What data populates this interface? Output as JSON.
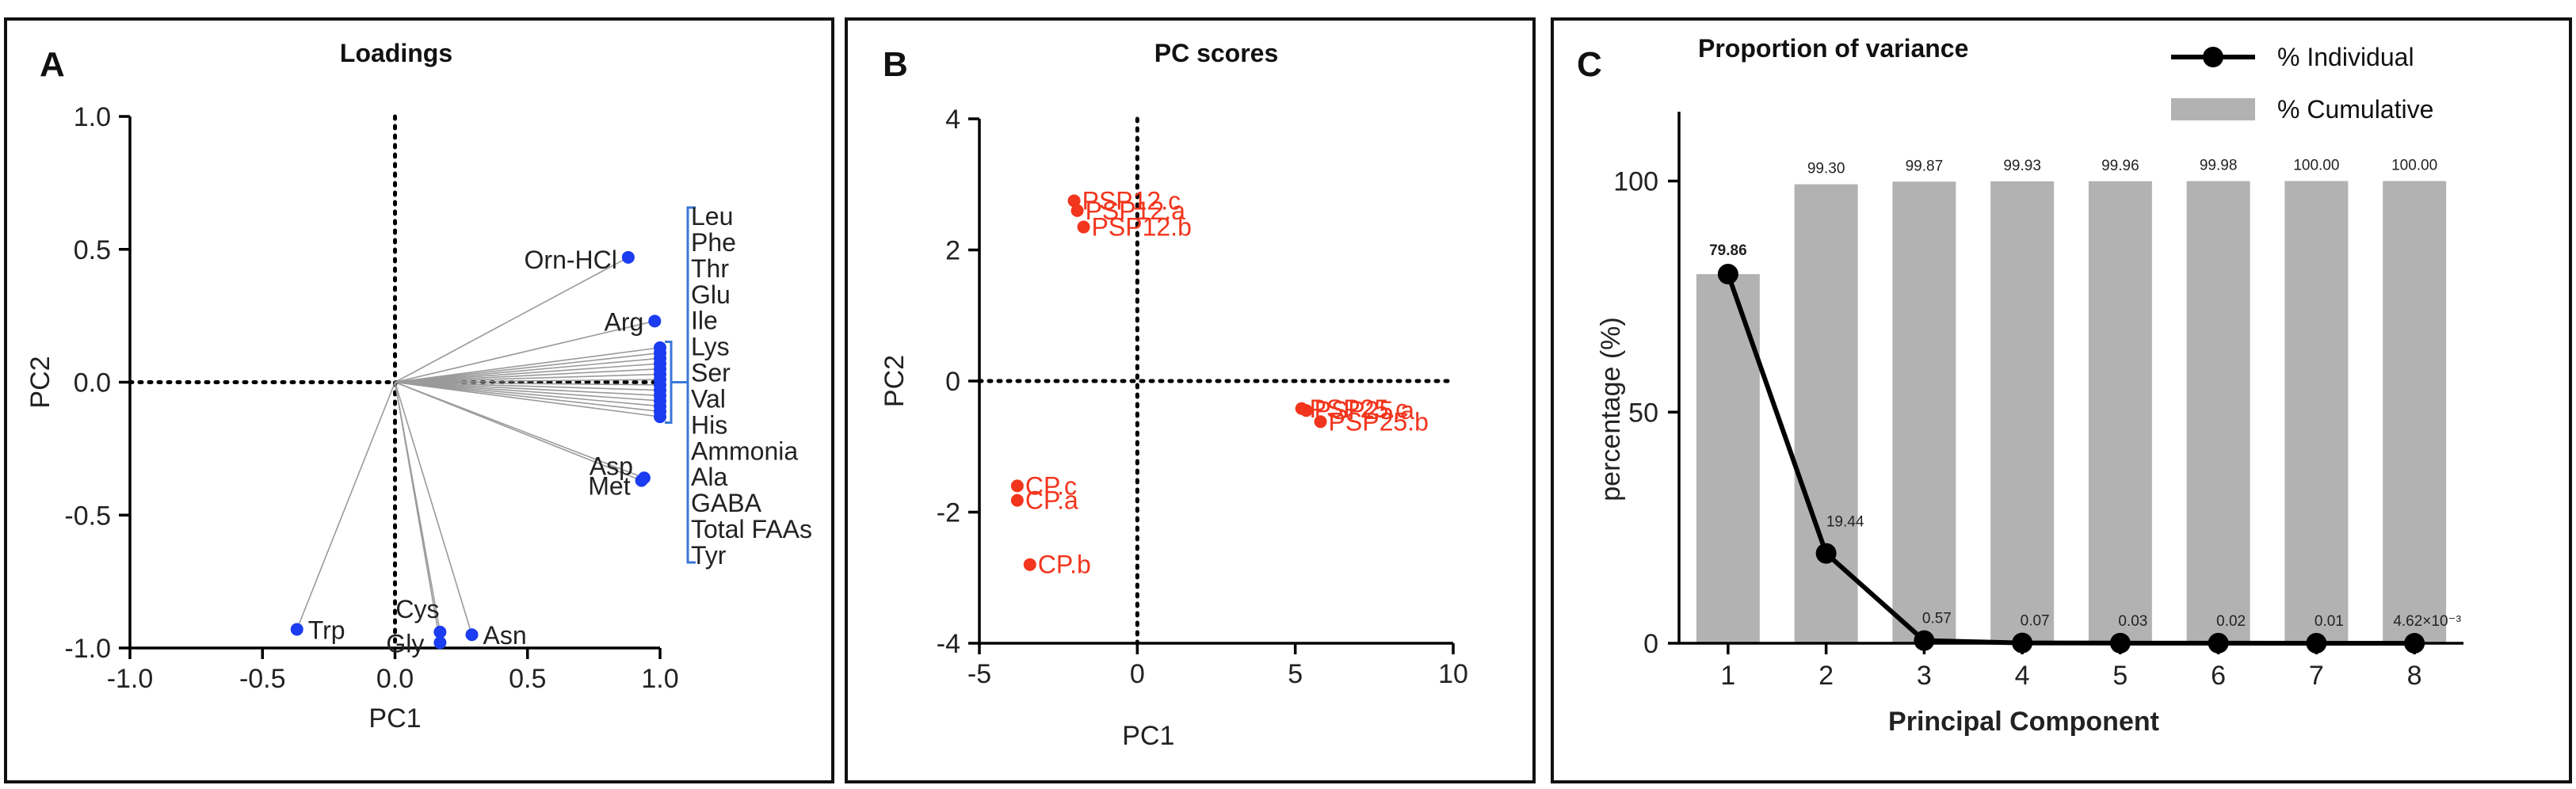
{
  "panels": {
    "a": {
      "letter": "A",
      "title": "Loadings"
    },
    "b": {
      "letter": "B",
      "title": "PC scores"
    },
    "c": {
      "letter": "C",
      "title": "Proportion of variance"
    }
  },
  "chart_data": [
    {
      "id": "loadings",
      "type": "scatter",
      "title": "Loadings",
      "xlabel": "PC1",
      "ylabel": "PC2",
      "xlim": [
        -1.0,
        1.0
      ],
      "ylim": [
        -1.0,
        1.0
      ],
      "xticks": [
        "-1.0",
        "-0.5",
        "0.0",
        "0.5",
        "1.0"
      ],
      "yticks": [
        "-1.0",
        "-0.5",
        "0.0",
        "0.5",
        "1.0"
      ],
      "points": [
        {
          "label": "Orn-HCl",
          "x": 0.88,
          "y": 0.47
        },
        {
          "label": "Arg",
          "x": 0.98,
          "y": 0.23
        },
        {
          "label": "Leu",
          "x": 1.0,
          "y": 0.13
        },
        {
          "label": "Phe",
          "x": 1.0,
          "y": 0.11
        },
        {
          "label": "Thr",
          "x": 1.0,
          "y": 0.09
        },
        {
          "label": "Glu",
          "x": 1.0,
          "y": 0.07
        },
        {
          "label": "Ile",
          "x": 1.0,
          "y": 0.05
        },
        {
          "label": "Lys",
          "x": 1.0,
          "y": 0.03
        },
        {
          "label": "Ser",
          "x": 1.0,
          "y": 0.01
        },
        {
          "label": "Val",
          "x": 1.0,
          "y": -0.01
        },
        {
          "label": "His",
          "x": 1.0,
          "y": -0.03
        },
        {
          "label": "Ammonia",
          "x": 1.0,
          "y": -0.05
        },
        {
          "label": "Ala",
          "x": 1.0,
          "y": -0.07
        },
        {
          "label": "GABA",
          "x": 1.0,
          "y": -0.09
        },
        {
          "label": "Total FAAs",
          "x": 1.0,
          "y": -0.11
        },
        {
          "label": "Tyr",
          "x": 1.0,
          "y": -0.13
        },
        {
          "label": "Asp",
          "x": 0.94,
          "y": -0.36
        },
        {
          "label": "Met",
          "x": 0.93,
          "y": -0.37
        },
        {
          "label": "Trp",
          "x": -0.37,
          "y": -0.93
        },
        {
          "label": "Cys",
          "x": 0.17,
          "y": -0.94
        },
        {
          "label": "Gly",
          "x": 0.17,
          "y": -0.98
        },
        {
          "label": "Asn",
          "x": 0.29,
          "y": -0.95
        }
      ],
      "bracket_labels": [
        "Leu",
        "Phe",
        "Thr",
        "Glu",
        "Ile",
        "Lys",
        "Ser",
        "Val",
        "His",
        "Ammonia",
        "Ala",
        "GABA",
        "Total FAAs",
        "Tyr"
      ]
    },
    {
      "id": "scores",
      "type": "scatter",
      "title": "PC scores",
      "xlabel": "PC1",
      "ylabel": "PC2",
      "xlim": [
        -5,
        10
      ],
      "ylim": [
        -4,
        4
      ],
      "xticks": [
        "-5",
        "0",
        "5",
        "10"
      ],
      "yticks": [
        "-4",
        "-2",
        "0",
        "2",
        "4"
      ],
      "points": [
        {
          "label": "PSP12.c",
          "x": -2.0,
          "y": 2.75
        },
        {
          "label": "PSP12.a",
          "x": -1.9,
          "y": 2.6
        },
        {
          "label": "PSP12.b",
          "x": -1.7,
          "y": 2.35
        },
        {
          "label": "PSP25.c",
          "x": 5.2,
          "y": -0.42
        },
        {
          "label": "PSP25.a",
          "x": 5.35,
          "y": -0.45
        },
        {
          "label": "PSP25.b",
          "x": 5.8,
          "y": -0.62
        },
        {
          "label": "CP.c",
          "x": -3.8,
          "y": -1.6
        },
        {
          "label": "CP.a",
          "x": -3.8,
          "y": -1.82
        },
        {
          "label": "CP.b",
          "x": -3.4,
          "y": -2.8
        }
      ]
    },
    {
      "id": "variance",
      "type": "bar",
      "title": "Proportion of variance",
      "xlabel": "Principal Component",
      "ylabel": "percentage (%)",
      "ylim": [
        0,
        115
      ],
      "yticks": [
        "0",
        "50",
        "100"
      ],
      "categories": [
        "1",
        "2",
        "3",
        "4",
        "5",
        "6",
        "7",
        "8"
      ],
      "series": [
        {
          "name": "% Cumulative",
          "type": "bar",
          "values": [
            79.86,
            99.3,
            99.87,
            99.93,
            99.96,
            99.98,
            100.0,
            100.0
          ],
          "labels": [
            "",
            "99.30",
            "99.87",
            "99.93",
            "99.96",
            "99.98",
            "100.00",
            "100.00"
          ]
        },
        {
          "name": "% Individual",
          "type": "line",
          "values": [
            79.86,
            19.44,
            0.57,
            0.07,
            0.03,
            0.02,
            0.01,
            0.00462
          ],
          "labels": [
            "79.86",
            "19.44",
            "0.57",
            "0.07",
            "0.03",
            "0.02",
            "0.01",
            "4.62×10⁻³"
          ]
        }
      ],
      "legend": [
        "% Individual",
        "% Cumulative"
      ]
    }
  ]
}
